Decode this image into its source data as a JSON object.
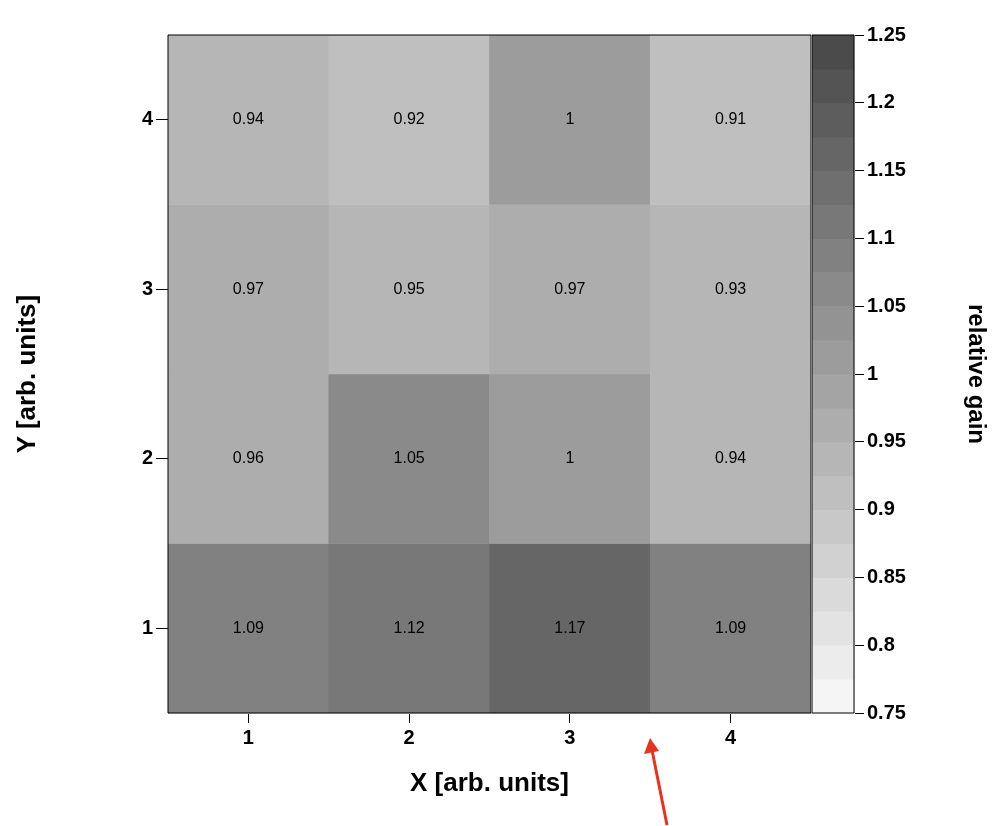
{
  "chart_data": {
    "type": "heatmap",
    "xlabel": "X [arb. units]",
    "ylabel": "Y [arb. units]",
    "clabel": "relative gain",
    "categories": [
      "1",
      "2",
      "3",
      "4"
    ],
    "y_categories": [
      "4",
      "3",
      "2",
      "1"
    ],
    "cells": [
      [
        0.94,
        0.92,
        1,
        0.91
      ],
      [
        0.97,
        0.95,
        0.97,
        0.93
      ],
      [
        0.96,
        1.05,
        1,
        0.94
      ],
      [
        1.09,
        1.12,
        1.17,
        1.09
      ]
    ],
    "clim": [
      0.75,
      1.25
    ],
    "cticks": [
      0.75,
      0.8,
      0.85,
      0.9,
      0.95,
      1,
      1.05,
      1.1,
      1.15,
      1.2,
      1.25
    ],
    "data_labels": true
  }
}
